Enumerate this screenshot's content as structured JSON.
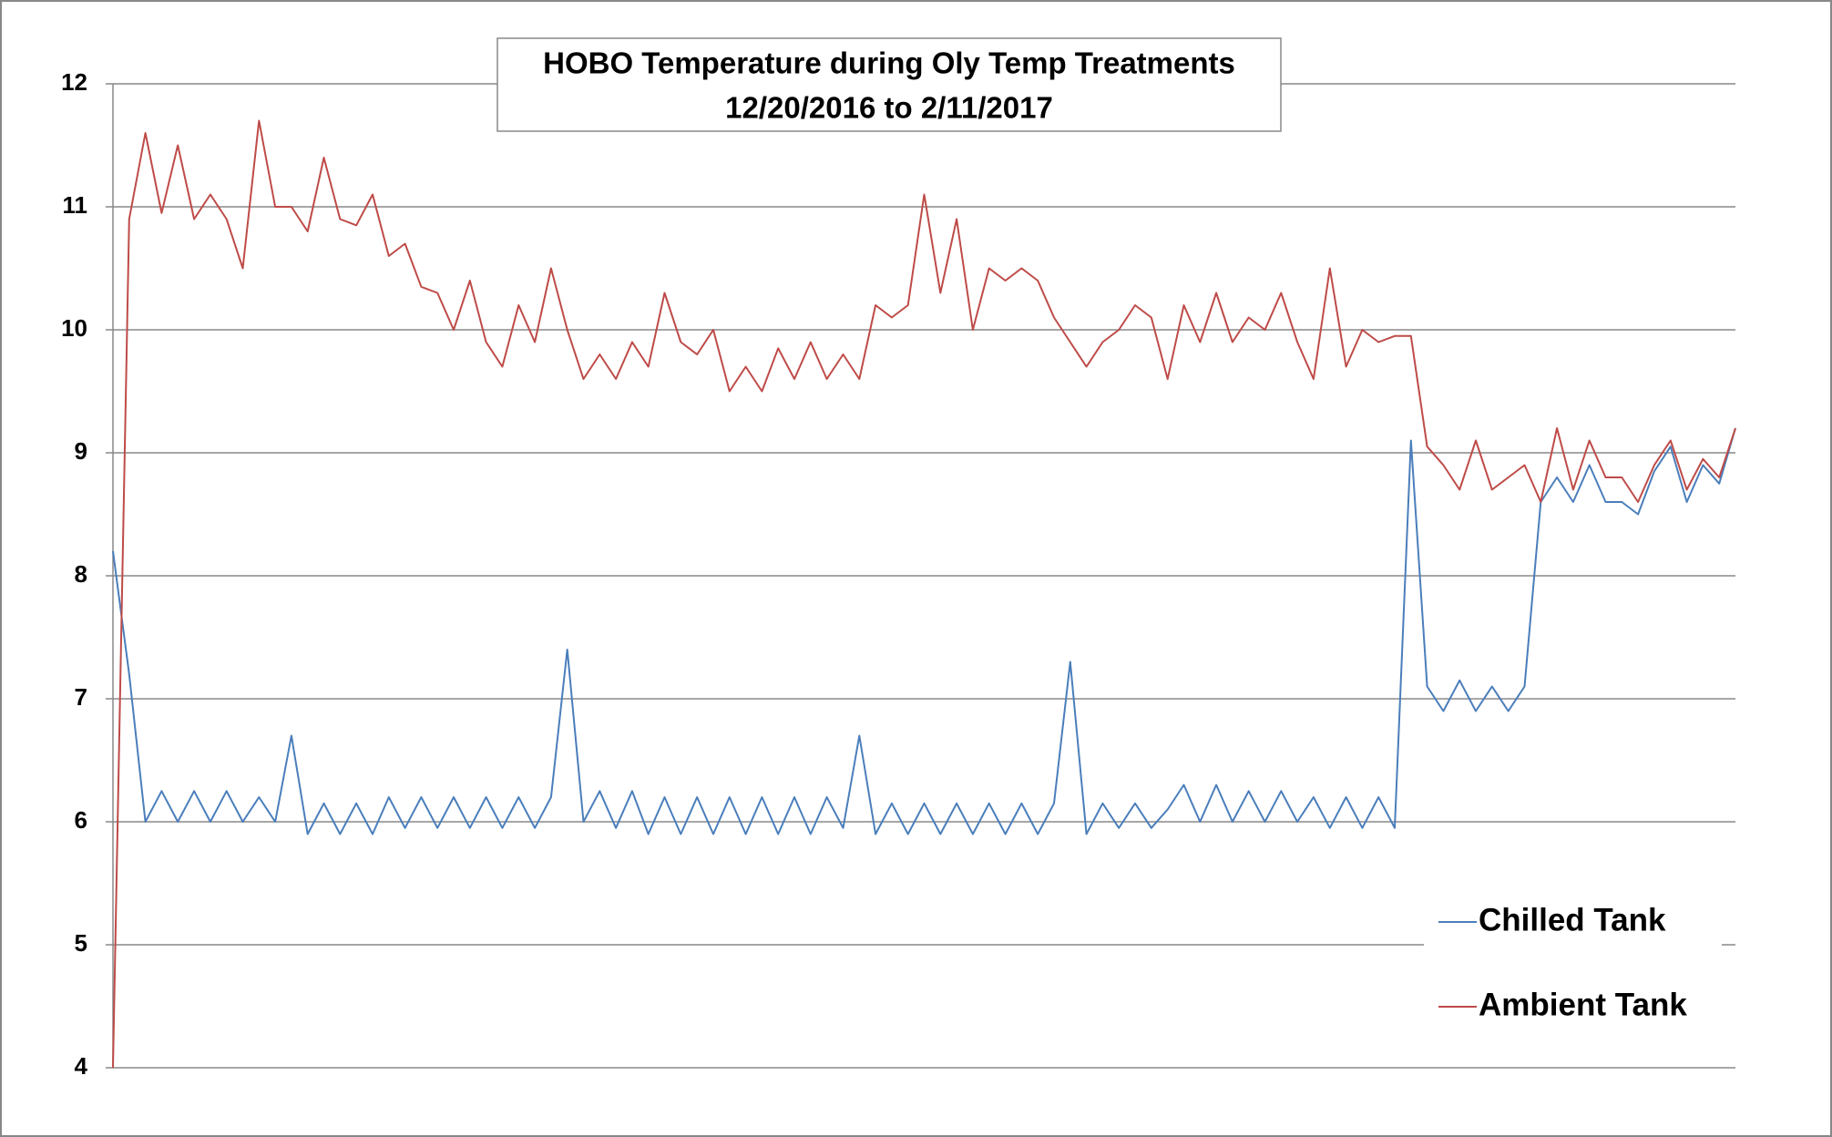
{
  "chart_data": {
    "type": "line",
    "title": "HOBO Temperature during Oly Temp Treatments",
    "subtitle": "12/20/2016 to 2/11/2017",
    "ylim": [
      4,
      12
    ],
    "yticks": [
      4,
      5,
      6,
      7,
      8,
      9,
      10,
      11,
      12
    ],
    "grid": true,
    "legend": "lower right",
    "series": [
      {
        "name": "Chilled Tank",
        "color": "#4a7ebb",
        "values": [
          8.2,
          7.2,
          6.0,
          6.25,
          6.0,
          6.25,
          6.0,
          6.25,
          6.0,
          6.2,
          6.0,
          6.7,
          5.9,
          6.15,
          5.9,
          6.15,
          5.9,
          6.2,
          5.95,
          6.2,
          5.95,
          6.2,
          5.95,
          6.2,
          5.95,
          6.2,
          5.95,
          6.2,
          7.4,
          6.0,
          6.25,
          5.95,
          6.25,
          5.9,
          6.2,
          5.9,
          6.2,
          5.9,
          6.2,
          5.9,
          6.2,
          5.9,
          6.2,
          5.9,
          6.2,
          5.95,
          6.7,
          5.9,
          6.15,
          5.9,
          6.15,
          5.9,
          6.15,
          5.9,
          6.15,
          5.9,
          6.15,
          5.9,
          6.15,
          7.3,
          5.9,
          6.15,
          5.95,
          6.15,
          5.95,
          6.1,
          6.3,
          6.0,
          6.3,
          6.0,
          6.25,
          6.0,
          6.25,
          6.0,
          6.2,
          5.95,
          6.2,
          5.95,
          6.2,
          5.95,
          9.1,
          7.1,
          6.9,
          7.15,
          6.9,
          7.1,
          6.9,
          7.1,
          8.6,
          8.8,
          8.6,
          8.9,
          8.6,
          8.6,
          8.5,
          8.85,
          9.05,
          8.6,
          8.9,
          8.75,
          9.2
        ]
      },
      {
        "name": "Ambient Tank",
        "color": "#be4b48",
        "values": [
          4,
          10.9,
          11.6,
          10.95,
          11.5,
          10.9,
          11.1,
          10.9,
          10.5,
          11.7,
          11.0,
          11.0,
          10.8,
          11.4,
          10.9,
          10.85,
          11.1,
          10.6,
          10.7,
          10.35,
          10.3,
          10.0,
          10.4,
          9.9,
          9.7,
          10.2,
          9.9,
          10.5,
          10.0,
          9.6,
          9.8,
          9.6,
          9.9,
          9.7,
          10.3,
          9.9,
          9.8,
          10.0,
          9.5,
          9.7,
          9.5,
          9.85,
          9.6,
          9.9,
          9.6,
          9.8,
          9.6,
          10.2,
          10.1,
          10.2,
          11.1,
          10.3,
          10.9,
          10.0,
          10.5,
          10.4,
          10.5,
          10.4,
          10.1,
          9.9,
          9.7,
          9.9,
          10.0,
          10.2,
          10.1,
          9.6,
          10.2,
          9.9,
          10.3,
          9.9,
          10.1,
          10.0,
          10.3,
          9.9,
          9.6,
          10.5,
          9.7,
          10.0,
          9.9,
          9.95,
          9.95,
          9.05,
          8.9,
          8.7,
          9.1,
          8.7,
          8.8,
          8.9,
          8.6,
          9.2,
          8.7,
          9.1,
          8.8,
          8.8,
          8.6,
          8.9,
          9.1,
          8.7,
          8.95,
          8.8,
          9.2
        ]
      }
    ]
  }
}
